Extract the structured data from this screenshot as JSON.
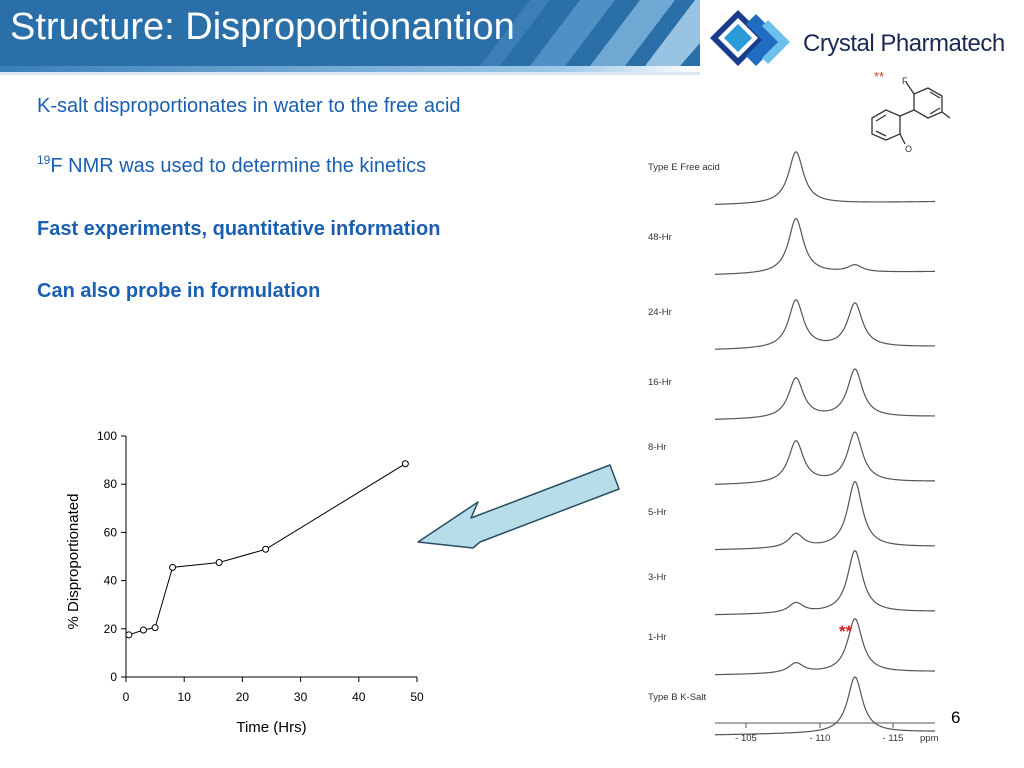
{
  "slide": {
    "title": "Structure: Disproportionantion",
    "logo_text": "Crystal Pharmatech",
    "page_number": "6"
  },
  "bullets": [
    {
      "text": "K-salt disproportionates in water to the free acid"
    },
    {
      "sup": "19",
      "text": "F NMR was used to determine the kinetics"
    },
    {
      "text": "Fast experiments, quantitative information"
    },
    {
      "text": "Can also probe in formulation"
    }
  ],
  "colors": {
    "title_bar": "#2a6fa8",
    "bullet_text": "#1a5fb0",
    "arrow_fill": "#b7dde8",
    "marker_red": "#e03030"
  },
  "molecule": {
    "atom_f": "F",
    "atom_o": "O",
    "marker": "**"
  },
  "spectra": {
    "spectrum_labels": [
      "Type E Free acid",
      "48-Hr",
      "24-Hr",
      "16-Hr",
      "8-Hr",
      "5-Hr",
      "3-Hr",
      "1-Hr",
      "Type B K-Salt"
    ],
    "x_ticks": [
      "- 105",
      "- 110",
      "- 115"
    ],
    "x_unit": "ppm",
    "peak_marker": "**"
  },
  "chart_data": {
    "type": "scatter",
    "title": "",
    "xlabel": "Time (Hrs)",
    "ylabel": "% Disproportionated",
    "xlim": [
      0,
      50
    ],
    "ylim": [
      0,
      100
    ],
    "x_ticks": [
      0,
      10,
      20,
      30,
      40,
      50
    ],
    "y_ticks": [
      0,
      20,
      40,
      60,
      80,
      100
    ],
    "grid": false,
    "series": [
      {
        "x": [
          0.5,
          3,
          5,
          8,
          16,
          24,
          48
        ],
        "y": [
          17.5,
          19.5,
          20.5,
          45.5,
          47.5,
          53,
          88.5
        ]
      }
    ]
  }
}
